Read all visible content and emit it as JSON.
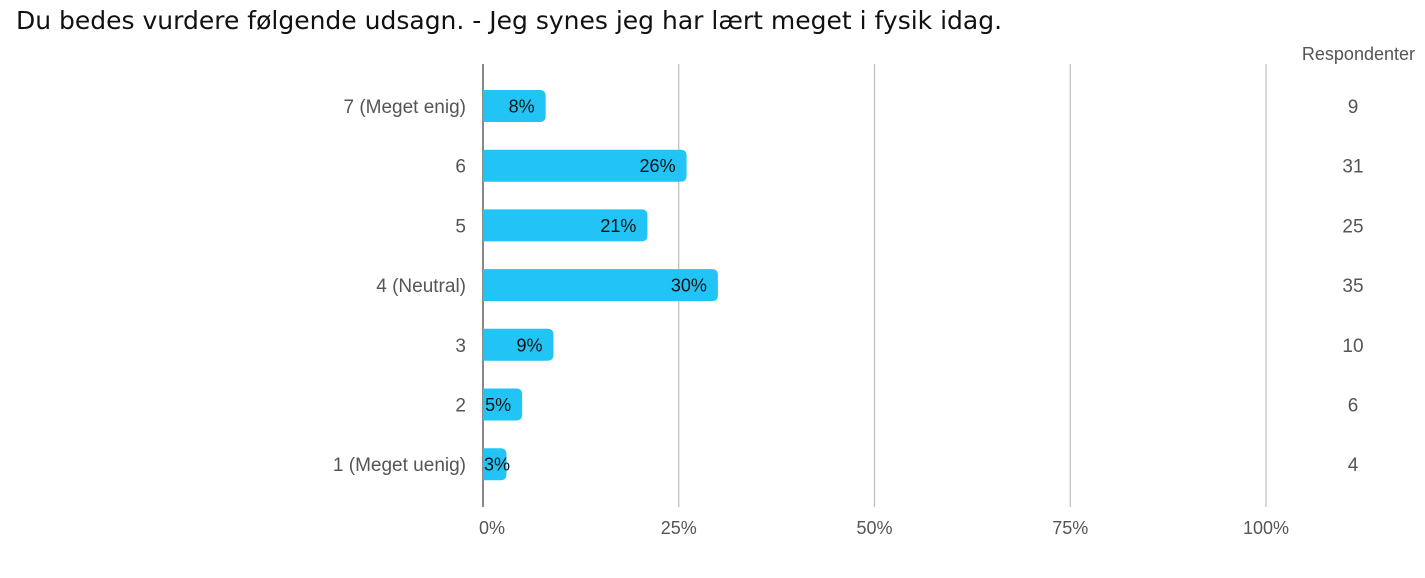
{
  "chart_data": {
    "type": "bar",
    "orientation": "horizontal",
    "title": "Du bedes vurdere følgende udsagn. - Jeg synes jeg har lært meget i fysik idag.",
    "categories": [
      "7 (Meget enig)",
      "6",
      "5",
      "4 (Neutral)",
      "3",
      "2",
      "1 (Meget uenig)"
    ],
    "values": [
      8,
      26,
      21,
      30,
      9,
      5,
      3
    ],
    "value_labels": [
      "8%",
      "26%",
      "21%",
      "30%",
      "9%",
      "5%",
      "3%"
    ],
    "respondents_header": "Respondenter",
    "respondents": [
      "9",
      "31",
      "25",
      "35",
      "10",
      "6",
      "4"
    ],
    "xlim": [
      0,
      100
    ],
    "xticks": [
      0,
      25,
      50,
      75,
      100
    ],
    "xtick_labels": [
      "0%",
      "25%",
      "50%",
      "75%",
      "100%"
    ],
    "grid": true,
    "bar_color": "#22c4f5"
  }
}
